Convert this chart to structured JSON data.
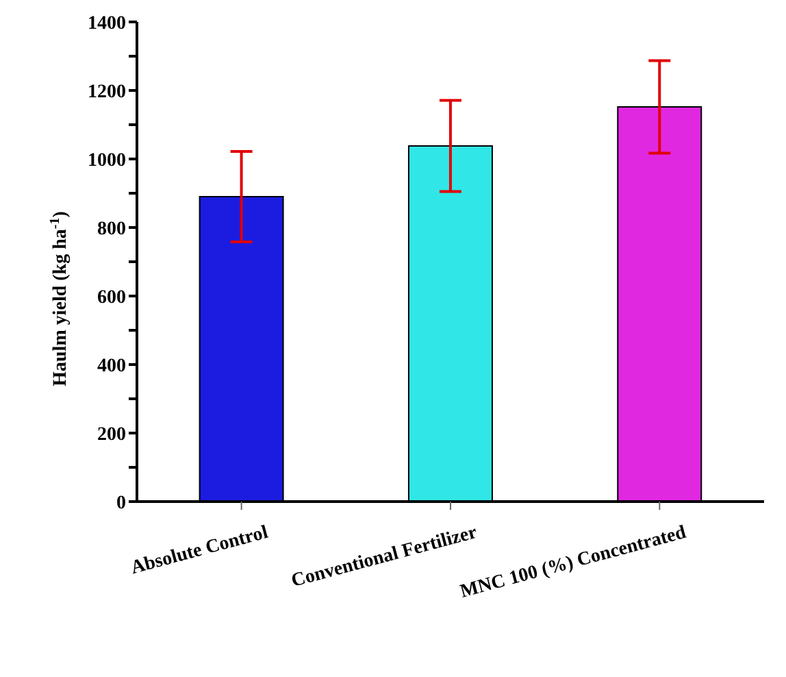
{
  "chart_data": {
    "type": "bar",
    "ylabel": "Haulm yield (kg ha$^{-1}$)",
    "categories": [
      "Absolute Control",
      "Conventional Fertilizer",
      "MNC 100 (%) Concentrated"
    ],
    "values": [
      890,
      1038,
      1152
    ],
    "colors": [
      "#1c1ce0",
      "#30e6e6",
      "#e028e0"
    ],
    "errors": [
      132,
      133,
      135
    ],
    "ylim": [
      0,
      1400
    ],
    "yticks": [
      0,
      {
        "value": 100,
        "label": null
      },
      200,
      {
        "value": 300,
        "label": null
      },
      400,
      {
        "value": 500,
        "label": null
      },
      600,
      {
        "value": 700,
        "label": null
      },
      800,
      {
        "value": 900,
        "label": null
      },
      1000,
      {
        "value": 1100,
        "label": null
      },
      1200,
      {
        "value": 1300,
        "label": null
      },
      1400
    ],
    "grid": false,
    "legend": false
  }
}
